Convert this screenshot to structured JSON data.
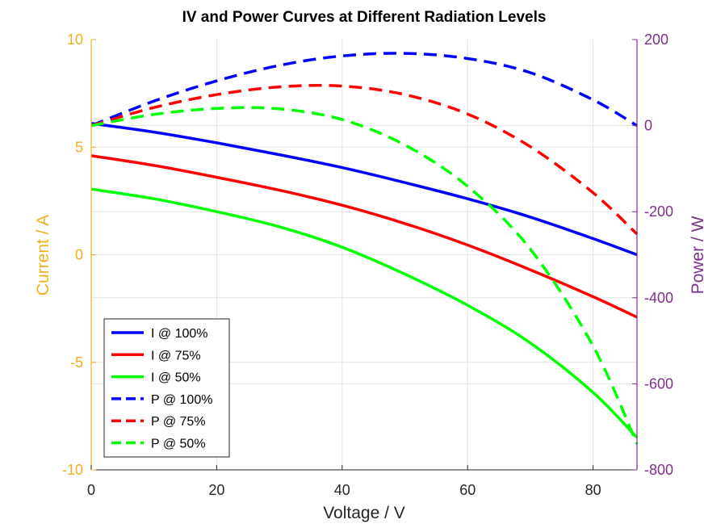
{
  "chart_data": {
    "type": "line",
    "title": "IV and Power Curves at Different Radiation Levels",
    "xlabel": "Voltage / V",
    "ylabel_left": "Current / A",
    "ylabel_right": "Power / W",
    "xlim": [
      0,
      87
    ],
    "ylim_left": [
      -10,
      10
    ],
    "ylim_right": [
      -800,
      200
    ],
    "xticks": [
      0,
      20,
      40,
      60,
      80
    ],
    "yticks_left": [
      -10,
      -5,
      0,
      5,
      10
    ],
    "yticks_right": [
      -800,
      -600,
      -400,
      -200,
      0,
      200
    ],
    "grid": true,
    "legend_position": "bottom-left",
    "colors": {
      "left_axis": "#EDB120",
      "right_axis": "#7E2F8E",
      "blue": "#0000ff",
      "red": "#ff0000",
      "green": "#00ff00"
    },
    "series": [
      {
        "name": "I @ 100%",
        "axis": "left",
        "style": "solid",
        "color": "#0000ff",
        "x": [
          0,
          10,
          20,
          30,
          40,
          50,
          60,
          70,
          80,
          87
        ],
        "y": [
          6.1,
          5.7,
          5.2,
          4.65,
          4.05,
          3.35,
          2.6,
          1.75,
          0.75,
          0.0
        ]
      },
      {
        "name": "I @ 75%",
        "axis": "left",
        "style": "solid",
        "color": "#ff0000",
        "x": [
          0,
          10,
          20,
          30,
          40,
          50,
          60,
          70,
          80,
          87
        ],
        "y": [
          4.6,
          4.15,
          3.6,
          3.0,
          2.3,
          1.45,
          0.45,
          -0.7,
          -1.95,
          -2.9
        ]
      },
      {
        "name": "I @ 50%",
        "axis": "left",
        "style": "solid",
        "color": "#00ff00",
        "x": [
          0,
          10,
          20,
          30,
          40,
          50,
          60,
          70,
          80,
          87
        ],
        "y": [
          3.05,
          2.6,
          2.0,
          1.3,
          0.35,
          -0.9,
          -2.35,
          -4.1,
          -6.4,
          -8.5
        ]
      },
      {
        "name": "P @ 100%",
        "axis": "right",
        "style": "dashed",
        "color": "#0000ff",
        "x": [
          0,
          10,
          20,
          30,
          40,
          50,
          60,
          70,
          80,
          87
        ],
        "y": [
          0,
          57,
          104,
          140,
          162,
          168,
          156,
          123,
          60,
          0
        ]
      },
      {
        "name": "P @ 75%",
        "axis": "right",
        "style": "dashed",
        "color": "#ff0000",
        "x": [
          0,
          10,
          20,
          30,
          40,
          50,
          60,
          70,
          80,
          87
        ],
        "y": [
          0,
          42,
          72,
          90,
          92,
          72,
          27,
          -49,
          -156,
          -252
        ]
      },
      {
        "name": "P @ 50%",
        "axis": "right",
        "style": "dashed",
        "color": "#00ff00",
        "x": [
          0,
          10,
          20,
          30,
          40,
          50,
          60,
          70,
          80,
          87
        ],
        "y": [
          0,
          26,
          40,
          39,
          14,
          -45,
          -141,
          -287,
          -512,
          -740
        ]
      }
    ]
  }
}
